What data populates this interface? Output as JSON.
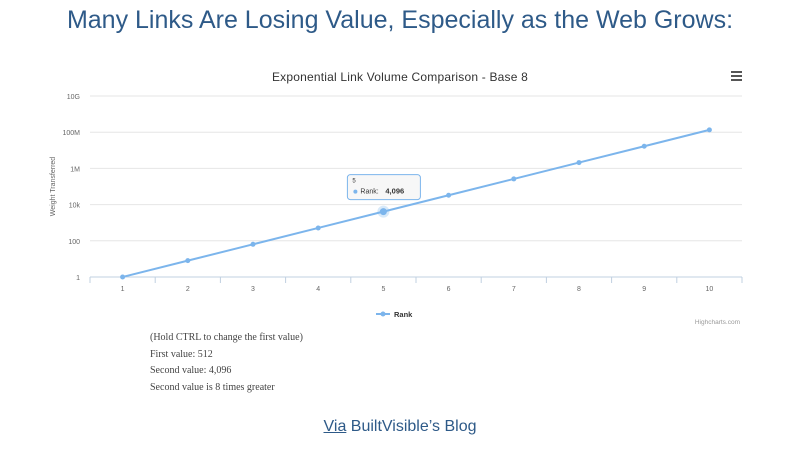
{
  "slide": {
    "title": "Many Links Are Losing Value, Especially as the Web Grows:",
    "source_link": "Via",
    "source_rest": " BuiltVisible’s Blog"
  },
  "notes": [
    "(Hold CTRL to change the first value)",
    "First value: 512",
    "Second value: 4,096",
    "Second value is 8 times greater"
  ],
  "chart_data": {
    "type": "line",
    "title": "Exponential Link Volume Comparison - Base 8",
    "xlabel": "",
    "ylabel": "Weight Transferred",
    "yscale": "log",
    "ylim": [
      1,
      10000000000
    ],
    "y_ticks": [
      1,
      100,
      10000,
      1000000,
      100000000,
      10000000000
    ],
    "y_tick_labels": [
      "1",
      "100",
      "10k",
      "1M",
      "100M",
      "10G"
    ],
    "x": [
      1,
      2,
      3,
      4,
      5,
      6,
      7,
      8,
      9,
      10
    ],
    "x_tick_labels": [
      "1",
      "2",
      "3",
      "4",
      "5",
      "6",
      "7",
      "8",
      "9",
      "10"
    ],
    "series": [
      {
        "name": "Rank",
        "values": [
          1,
          8,
          64,
          512,
          4096,
          32768,
          262144,
          2097152,
          16777216,
          134217728
        ]
      }
    ],
    "grid": true,
    "legend": "bottom-center",
    "tooltip": {
      "x_label": "5",
      "series": "Rank",
      "label": "Rank:",
      "value": "4,096"
    },
    "credits": "Highcharts.com",
    "colors": {
      "series": "#7cb5ec",
      "grid": "#e6e6e6",
      "axis": "#c0d0e0"
    }
  }
}
